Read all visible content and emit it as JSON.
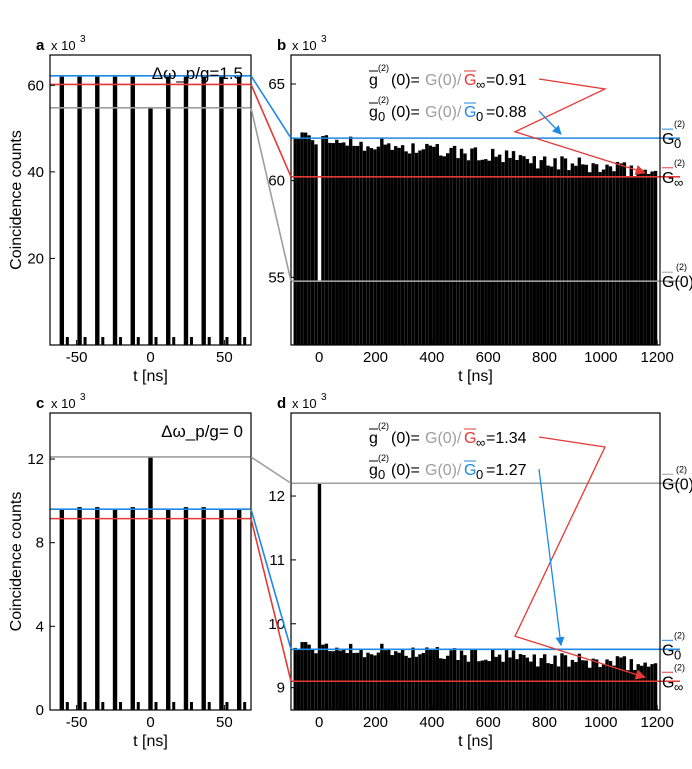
{
  "colors": {
    "blue": "#1e88e5",
    "red": "#e53935",
    "gray": "#9e9e9e",
    "bars": "#000000"
  },
  "chart_data": [
    {
      "panel": "a",
      "type": "bar",
      "annotation": "Δω_p/g=1.5",
      "multiplier": "x 10",
      "multiplier_exp": "3",
      "xlabel": "t [ns]",
      "ylabel": "Coincidence counts",
      "xlim": [
        -68,
        68
      ],
      "ylim": [
        0,
        67
      ],
      "xticks": [
        -50,
        0,
        50
      ],
      "yticks": [
        20,
        40,
        60
      ],
      "x": [
        -60,
        -48,
        -36,
        -24,
        -12,
        0,
        12,
        24,
        36,
        48,
        60
      ],
      "values": [
        62,
        62,
        62,
        62,
        62,
        55,
        62,
        62,
        62,
        62,
        62
      ],
      "hlines": [
        {
          "key": "blue",
          "y": 62.2
        },
        {
          "key": "red",
          "y": 60.2
        },
        {
          "key": "gray",
          "y": 54.8
        }
      ]
    },
    {
      "panel": "b",
      "type": "bar",
      "multiplier": "x 10",
      "multiplier_exp": "3",
      "xlabel": "t [ns]",
      "xlim": [
        -100,
        1210
      ],
      "ylim": [
        51.5,
        66.5
      ],
      "xticks": [
        0,
        200,
        400,
        600,
        800,
        1000,
        1200
      ],
      "yticks": [
        55,
        60,
        65
      ],
      "first_x": -85,
      "spacing": 12.3,
      "count": 105,
      "peak": {
        "x": 0,
        "value": 54.8
      },
      "start_value": 62.3,
      "end_value": 60.4,
      "noise": 0.4,
      "hlines": [
        {
          "key": "blue",
          "y": 62.2,
          "label": "G",
          "sub": "0",
          "sup": "(2)"
        },
        {
          "key": "red",
          "y": 60.2,
          "label": "G",
          "sub": "∞",
          "sup": "(2)"
        },
        {
          "key": "gray",
          "y": 54.8,
          "label": "G(0)",
          "sup": "(2)"
        }
      ],
      "formulas": [
        {
          "lhs": "g",
          "lhs_sub": "",
          "rhs_key": "red",
          "rhs_sub": "∞",
          "value": "=0.91"
        },
        {
          "lhs": "g",
          "lhs_sub": "0",
          "rhs_key": "blue",
          "rhs_sub": "0",
          "value": "=0.88"
        }
      ]
    },
    {
      "panel": "c",
      "type": "bar",
      "annotation": "Δω_p/g= 0",
      "multiplier": "x 10",
      "multiplier_exp": "3",
      "xlabel": "t [ns]",
      "ylabel": "Coincidence counts",
      "xlim": [
        -68,
        68
      ],
      "ylim": [
        0,
        14.2
      ],
      "xticks": [
        -50,
        0,
        50
      ],
      "yticks": [
        0,
        4,
        8,
        12
      ],
      "x": [
        -60,
        -48,
        -36,
        -24,
        -12,
        0,
        12,
        24,
        36,
        48,
        60
      ],
      "values": [
        9.6,
        9.7,
        9.7,
        9.6,
        9.7,
        12.1,
        9.6,
        9.7,
        9.7,
        9.6,
        9.6
      ],
      "hlines": [
        {
          "key": "gray",
          "y": 12.1
        },
        {
          "key": "blue",
          "y": 9.6
        },
        {
          "key": "red",
          "y": 9.15
        }
      ]
    },
    {
      "panel": "d",
      "type": "bar",
      "multiplier": "x 10",
      "multiplier_exp": "3",
      "xlabel": "t [ns]",
      "xlim": [
        -100,
        1210
      ],
      "ylim": [
        8.65,
        13.3
      ],
      "xticks": [
        0,
        200,
        400,
        600,
        800,
        1000,
        1200
      ],
      "yticks": [
        9,
        10,
        11,
        12
      ],
      "first_x": -85,
      "spacing": 12.3,
      "count": 105,
      "peak": {
        "x": 0,
        "value": 12.2
      },
      "start_value": 9.65,
      "end_value": 9.35,
      "noise": 0.12,
      "hlines": [
        {
          "key": "gray",
          "y": 12.2,
          "label": "G(0)",
          "sup": "(2)"
        },
        {
          "key": "blue",
          "y": 9.6,
          "label": "G",
          "sub": "0",
          "sup": "(2)"
        },
        {
          "key": "red",
          "y": 9.1,
          "label": "G",
          "sub": "∞",
          "sup": "(2)"
        }
      ],
      "formulas": [
        {
          "lhs": "g",
          "lhs_sub": "",
          "rhs_key": "red",
          "rhs_sub": "∞",
          "value": "=1.34"
        },
        {
          "lhs": "g",
          "lhs_sub": "0",
          "rhs_key": "blue",
          "rhs_sub": "0",
          "value": "=1.27"
        }
      ]
    }
  ]
}
